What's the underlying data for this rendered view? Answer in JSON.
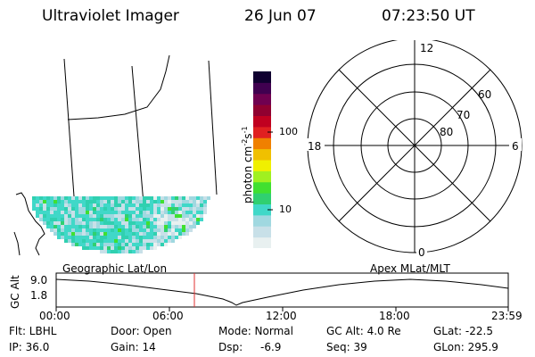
{
  "header": {
    "title": "Ultraviolet Imager",
    "date": "26 Jun 07",
    "time": "07:23:50 UT"
  },
  "colorbar": {
    "unit_label": "photon cm",
    "unit_exp1": "-2",
    "unit_s": "s",
    "unit_exp2": "-1",
    "tick_100": "100",
    "tick_10": "10",
    "colors": [
      "#e8f0f0",
      "#c8e0e8",
      "#a0d8e0",
      "#40d8c8",
      "#30d070",
      "#40e030",
      "#a0f020",
      "#f0f000",
      "#f0c000",
      "#f08000",
      "#e02020",
      "#c00020",
      "#900030",
      "#700050",
      "#400050",
      "#100030"
    ]
  },
  "polar": {
    "label_top": "12",
    "label_left": "18",
    "label_right": "6",
    "label_bottom": "0",
    "ring_labels": [
      "60",
      "70",
      "80"
    ]
  },
  "timeline": {
    "left_label": "Geographic Lat/Lon",
    "right_label": "Apex MLat/MLT",
    "ylabel": "GC Alt",
    "ytick_top": "9.0",
    "ytick_bottom": "1.8",
    "xticks": [
      "00:00",
      "06:00",
      "12:00",
      "18:00",
      "23:59"
    ],
    "current_time_color": "#e03030"
  },
  "footer": {
    "flt": "Flt: LBHL",
    "ip": "IP: 36.0",
    "door": "Door: Open",
    "gain": "Gain: 14",
    "mode": "Mode: Normal",
    "dsp": "Dsp:",
    "dsp_val": "-6.9",
    "gcalt": "GC Alt: 4.0 Re",
    "seq": "Seq: 39",
    "glat": "GLat: -22.5",
    "glon": "GLon: 295.9"
  }
}
